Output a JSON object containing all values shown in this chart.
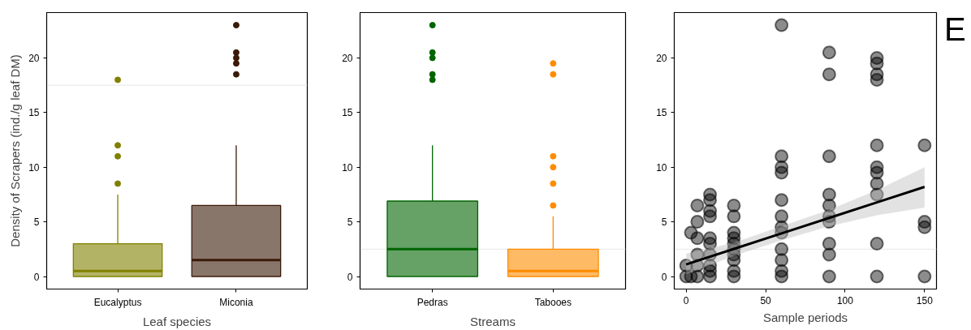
{
  "chart_data": [
    {
      "type": "box",
      "xlabel": "Leaf species",
      "ylabel": "Density of Scrapers (ind./g leaf DM)",
      "categories": [
        "Eucalyptus",
        "Miconia"
      ],
      "colors": [
        "#808000",
        "#3b1a08"
      ],
      "boxes": [
        {
          "low": 0,
          "q1": 0,
          "median": 0.5,
          "q3": 3,
          "high": 7.5,
          "outliers": [
            8.5,
            11,
            12,
            18
          ]
        },
        {
          "low": 0,
          "q1": 0,
          "median": 1.5,
          "q3": 6.5,
          "high": 12,
          "outliers": [
            18.5,
            19.5,
            20,
            20.5,
            23
          ]
        }
      ],
      "ylim": [
        -1.15,
        24.15
      ],
      "yticks": [
        0,
        5,
        10,
        15,
        20
      ],
      "ref_lines": [
        {
          "axis": "y",
          "value": 17.5,
          "color": "#ebebeb"
        }
      ]
    },
    {
      "type": "box",
      "xlabel": "Streams",
      "categories": [
        "Pedras",
        "Tabooes"
      ],
      "colors": [
        "#006400",
        "#ff8c00"
      ],
      "boxes": [
        {
          "low": 0,
          "q1": 0,
          "median": 2.5,
          "q3": 6.9,
          "high": 12,
          "outliers": [
            18,
            18.5,
            20,
            20.5,
            23
          ]
        },
        {
          "low": 0,
          "q1": 0,
          "median": 0.5,
          "q3": 2.5,
          "high": 5.5,
          "outliers": [
            6.5,
            8.5,
            10,
            11,
            18.5,
            19.5
          ]
        }
      ],
      "ylim": [
        -1.15,
        24.15
      ],
      "yticks": [
        0,
        5,
        10,
        15,
        20
      ],
      "ref_lines": [
        {
          "axis": "y",
          "value": 2.5,
          "color": "#ebebeb"
        }
      ]
    },
    {
      "type": "scatter",
      "xlabel": "Sample periods",
      "annotations": [
        "E"
      ],
      "series": [
        {
          "type": "scatter",
          "marker": "circle",
          "color": "#000000",
          "x": [
            0,
            0,
            3,
            3,
            7,
            7,
            7,
            7,
            7,
            7,
            15,
            15,
            15,
            15,
            15,
            15,
            15,
            15,
            15,
            15,
            30,
            30,
            30,
            30,
            30,
            30,
            30,
            30,
            30,
            30,
            60,
            60,
            60,
            60,
            60,
            60,
            60,
            60,
            60,
            60,
            60,
            60,
            90,
            90,
            90,
            90,
            90,
            90,
            90,
            90,
            90,
            90,
            120,
            120,
            120,
            120,
            120,
            120,
            120,
            120,
            120,
            120,
            120,
            150,
            150,
            150,
            150
          ],
          "values": [
            0,
            1,
            4,
            0,
            6.5,
            5,
            3.5,
            2,
            1,
            0,
            7.5,
            7,
            6,
            5.5,
            3.5,
            3,
            2,
            1,
            0.5,
            0,
            6.5,
            5.5,
            4,
            3.5,
            3,
            2.5,
            2,
            1.5,
            0.5,
            0,
            23,
            11,
            10,
            9.5,
            7,
            5.5,
            4.5,
            4,
            2.5,
            1.5,
            0.5,
            0,
            20.5,
            18.5,
            11,
            7.5,
            6.5,
            5.5,
            5,
            3,
            2,
            0,
            20,
            19.5,
            18.5,
            18,
            12,
            10,
            9.5,
            8.5,
            7.5,
            3,
            0,
            12,
            5,
            4.5,
            0
          ]
        },
        {
          "type": "line",
          "color": "#000000",
          "x": [
            0,
            30,
            60,
            90,
            120,
            150
          ],
          "values": [
            1.1,
            2.52,
            3.94,
            5.36,
            6.78,
            8.2
          ],
          "lower": [
            0.2,
            1.9,
            3.3,
            4.6,
            5.6,
            6.3
          ],
          "upper": [
            2.1,
            3.1,
            4.6,
            6.1,
            7.9,
            10.0
          ]
        }
      ],
      "xlim": [
        -7.5,
        157.5
      ],
      "xticks": [
        0,
        50,
        100,
        150
      ],
      "ylim": [
        -1.15,
        24.15
      ],
      "yticks": [
        0,
        5,
        10,
        15,
        20
      ],
      "ref_lines": [
        {
          "axis": "y",
          "value": 2.5,
          "color": "#ebebeb"
        }
      ]
    }
  ]
}
